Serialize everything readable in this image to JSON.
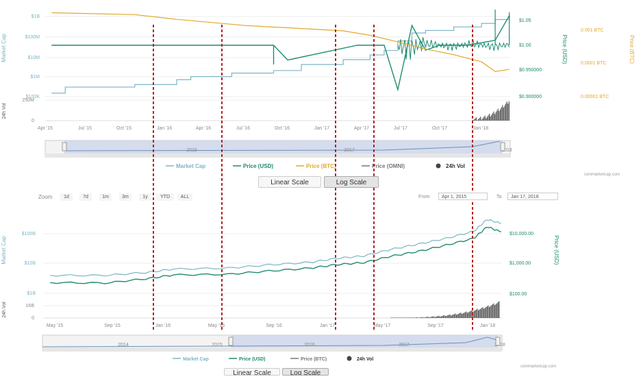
{
  "colors": {
    "market_cap": "#7cb5c6",
    "price_usd": "#1f8a70",
    "price_btc": "#e0a82e",
    "price_omni": "#777777",
    "volume": "#444444",
    "divider": "#b22222",
    "navigator_fill": "#ccd6eb"
  },
  "top_chart": {
    "left_axis_title": "Market Cap",
    "right_axis1_title": "Price (USD)",
    "right_axis2_title": "Price (BTC)",
    "vol_axis_title": "24h Vol",
    "left_ticks": [
      "$1B",
      "$100M",
      "$10M",
      "$1M",
      "$100K"
    ],
    "right1_ticks": [
      "$1.05",
      "$1.00",
      "$0.950000",
      "$0.900000"
    ],
    "right2_ticks": [
      "0.001 BTC",
      "0.0001 BTC",
      "0.00001 BTC"
    ],
    "vol_ticks": [
      "250M",
      "0"
    ],
    "x_ticks": [
      "Apr '15",
      "Jul '15",
      "Oct '15",
      "Jan '16",
      "Apr '16",
      "Jul '16",
      "Oct '16",
      "Jan '17",
      "Apr '17",
      "Jul '17",
      "Oct '17",
      "Jan '18"
    ],
    "navigator_labels": [
      "2016",
      "2017",
      "2018"
    ],
    "legend": [
      "Market Cap",
      "Price (USD)",
      "Price (BTC)",
      "Price (OMNI)",
      "24h Vol"
    ],
    "credit": "coinmarketcap.com",
    "buttons": {
      "linear": "Linear Scale",
      "log": "Log Scale"
    }
  },
  "bottom_chart": {
    "left_axis_title": "Market Cap",
    "right_axis_title": "Price (USD)",
    "vol_axis_title": "24h Vol",
    "left_ticks": [
      "$100B",
      "$10B",
      "$1B"
    ],
    "right_ticks": [
      "$10,000.00",
      "$1,000.00",
      "$100.00"
    ],
    "vol_ticks": [
      "16B",
      "0"
    ],
    "x_ticks": [
      "May '15",
      "Sep '15",
      "Jan '16",
      "May '16",
      "Sep '16",
      "Jan '17",
      "May '17",
      "Sep '17",
      "Jan '18"
    ],
    "navigator_labels": [
      "2014",
      "2015",
      "2016",
      "2017",
      "2018"
    ],
    "legend": [
      "Market Cap",
      "Price (USD)",
      "Price (BTC)",
      "24h Vol"
    ],
    "credit": "coinmarketcap.com",
    "buttons": {
      "linear": "Linear Scale",
      "log": "Log Scale"
    },
    "zoom": {
      "label": "Zoom",
      "options": [
        "1d",
        "7d",
        "1m",
        "3m",
        "1y",
        "YTD",
        "ALL"
      ]
    },
    "range": {
      "from_label": "From",
      "from_value": "Apr 1, 2015",
      "to_label": "To",
      "to_value": "Jan 17, 2018"
    }
  },
  "chart_data": [
    {
      "type": "line",
      "scale": "log",
      "x_range": [
        "2015-04-01",
        "2018-01-17"
      ],
      "series": [
        {
          "name": "Market Cap",
          "axis": "left",
          "x": [
            "2015-04",
            "2015-05",
            "2015-10",
            "2016-01",
            "2016-02",
            "2016-05",
            "2016-08",
            "2016-10",
            "2017-01",
            "2017-03",
            "2017-04",
            "2017-05",
            "2017-06",
            "2017-07",
            "2017-09",
            "2017-11",
            "2017-12",
            "2018-01"
          ],
          "values": [
            0.15,
            0.3,
            0.4,
            0.7,
            1.0,
            1.5,
            2.0,
            4.0,
            7.0,
            12.0,
            20.0,
            60.0,
            150.0,
            200.0,
            300.0,
            450.0,
            700.0,
            1000.0
          ],
          "unit": "$M"
        },
        {
          "name": "Price (USD)",
          "axis": "right1",
          "x": [
            "2015-04",
            "2016-08",
            "2016-09",
            "2017-02",
            "2017-04",
            "2017-05",
            "2017-06",
            "2017-07",
            "2017-08",
            "2017-10",
            "2017-12",
            "2018-01"
          ],
          "values": [
            1.0,
            1.0,
            0.97,
            1.0,
            1.0,
            0.91,
            1.04,
            0.99,
            1.0,
            1.0,
            1.01,
            1.06
          ]
        },
        {
          "name": "Price (BTC)",
          "axis": "right2",
          "x": [
            "2015-04",
            "2015-10",
            "2016-01",
            "2016-06",
            "2016-10",
            "2017-01",
            "2017-03",
            "2017-05",
            "2017-07",
            "2017-09",
            "2017-11",
            "2017-12",
            "2018-01"
          ],
          "values": [
            0.004,
            0.0035,
            0.0025,
            0.0016,
            0.0013,
            0.0011,
            0.0008,
            0.0005,
            0.0003,
            0.0002,
            0.00012,
            6e-05,
            7e-05
          ]
        }
      ],
      "volume_trend": "near zero until late 2017, rising sharply into Jan 2018",
      "legend_placement": "bottom-center"
    },
    {
      "type": "line",
      "scale": "log",
      "x_range": [
        "2015-04-01",
        "2018-01-17"
      ],
      "series": [
        {
          "name": "Market Cap",
          "axis": "left",
          "x": [
            "2015-04",
            "2015-08",
            "2015-11",
            "2016-01",
            "2016-05",
            "2016-08",
            "2016-11",
            "2017-01",
            "2017-03",
            "2017-05",
            "2017-07",
            "2017-09",
            "2017-11",
            "2017-12",
            "2018-01"
          ],
          "values": [
            4.0,
            4.0,
            5.0,
            6.5,
            7.0,
            9.0,
            11.0,
            15.0,
            18.0,
            30.0,
            45.0,
            70.0,
            120.0,
            300.0,
            220.0
          ],
          "unit": "$B"
        },
        {
          "name": "Price (USD)",
          "axis": "right",
          "x": [
            "2015-04",
            "2015-08",
            "2015-11",
            "2016-01",
            "2016-05",
            "2016-08",
            "2016-11",
            "2017-01",
            "2017-03",
            "2017-05",
            "2017-07",
            "2017-09",
            "2017-11",
            "2017-12",
            "2018-01"
          ],
          "values": [
            240,
            230,
            320,
            430,
            450,
            580,
            720,
            950,
            1100,
            1800,
            2600,
            4200,
            7000,
            17000,
            11500
          ]
        }
      ],
      "volume_trend": "small until mid 2017, spikes in Dec 2017 – Jan 2018",
      "legend_placement": "bottom-center"
    }
  ]
}
